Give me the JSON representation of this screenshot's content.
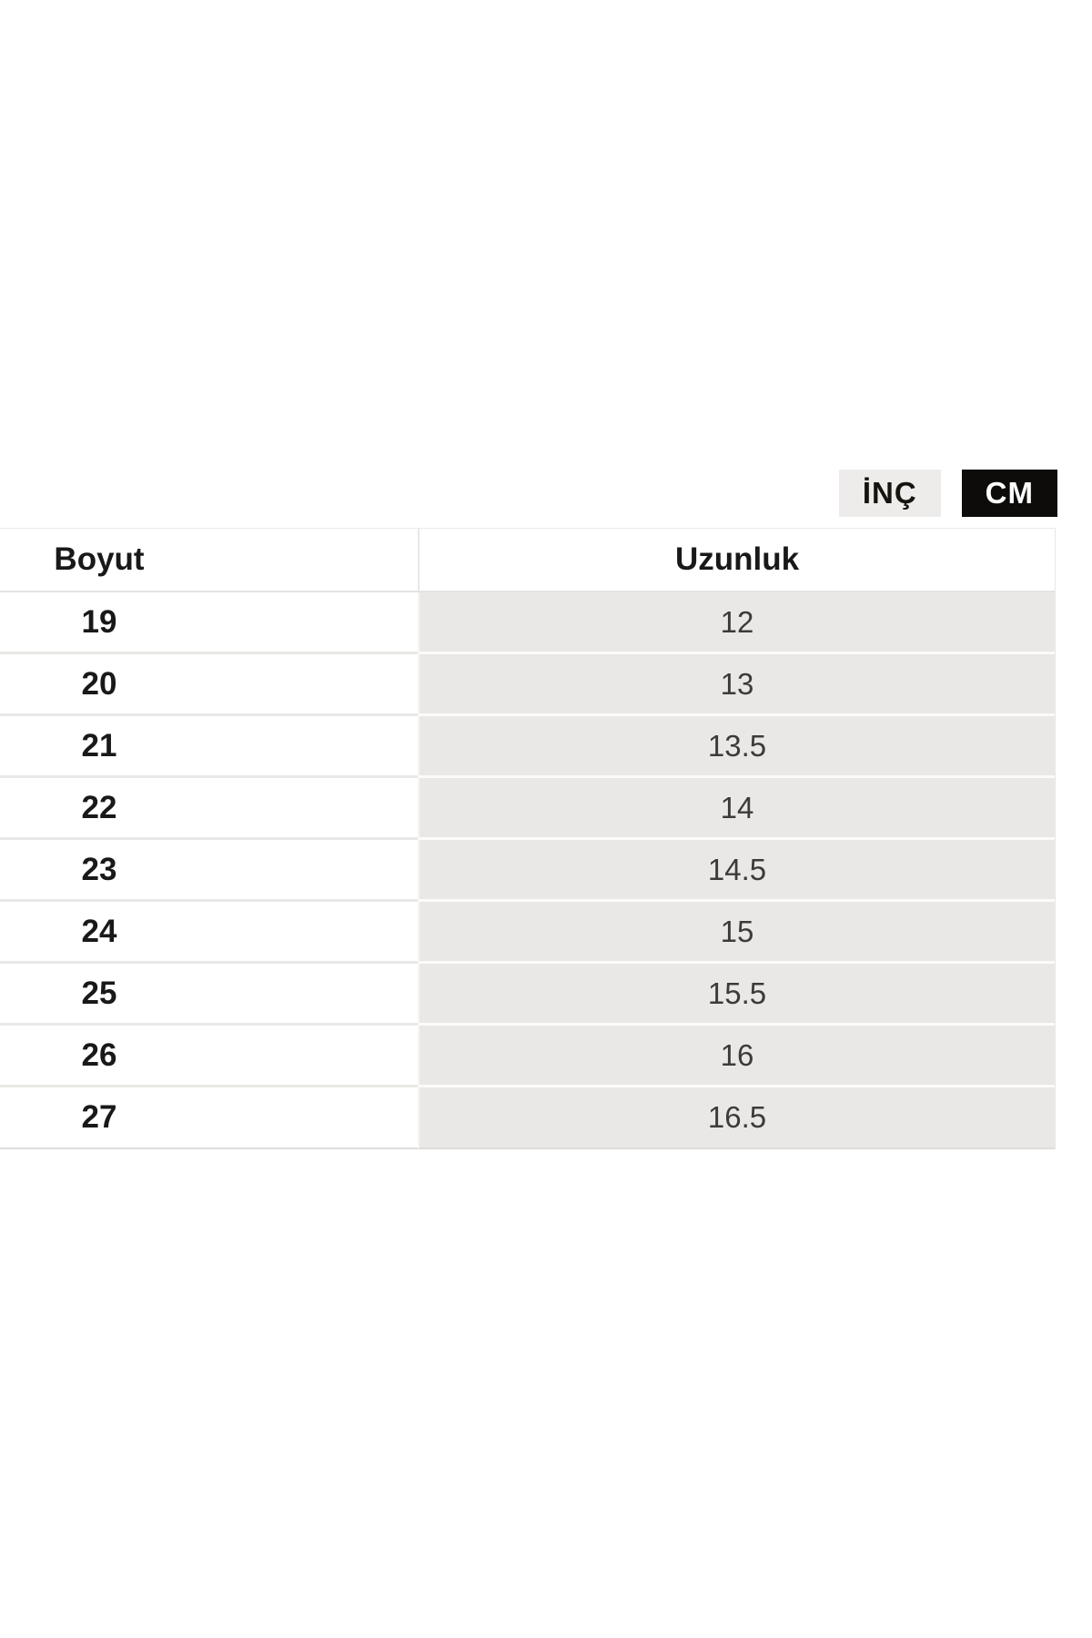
{
  "unit_toggle": {
    "inch_label": "İNÇ",
    "cm_label": "CM",
    "selected_unit": "CM"
  },
  "table": {
    "headers": [
      "Boyut",
      "Uzunluk"
    ],
    "rows": [
      {
        "size": "19",
        "length": "12"
      },
      {
        "size": "20",
        "length": "13"
      },
      {
        "size": "21",
        "length": "13.5"
      },
      {
        "size": "22",
        "length": "14"
      },
      {
        "size": "23",
        "length": "14.5"
      },
      {
        "size": "24",
        "length": "15"
      },
      {
        "size": "25",
        "length": "15.5"
      },
      {
        "size": "26",
        "length": "16"
      },
      {
        "size": "27",
        "length": "16.5"
      }
    ]
  },
  "colors": {
    "selected_toggle_bg": "#0d0c0a",
    "selected_toggle_text": "#ffffff",
    "inactive_toggle_bg": "#edecea",
    "cell_gray": "#e9e8e6",
    "page_bg": "#ffffff"
  }
}
